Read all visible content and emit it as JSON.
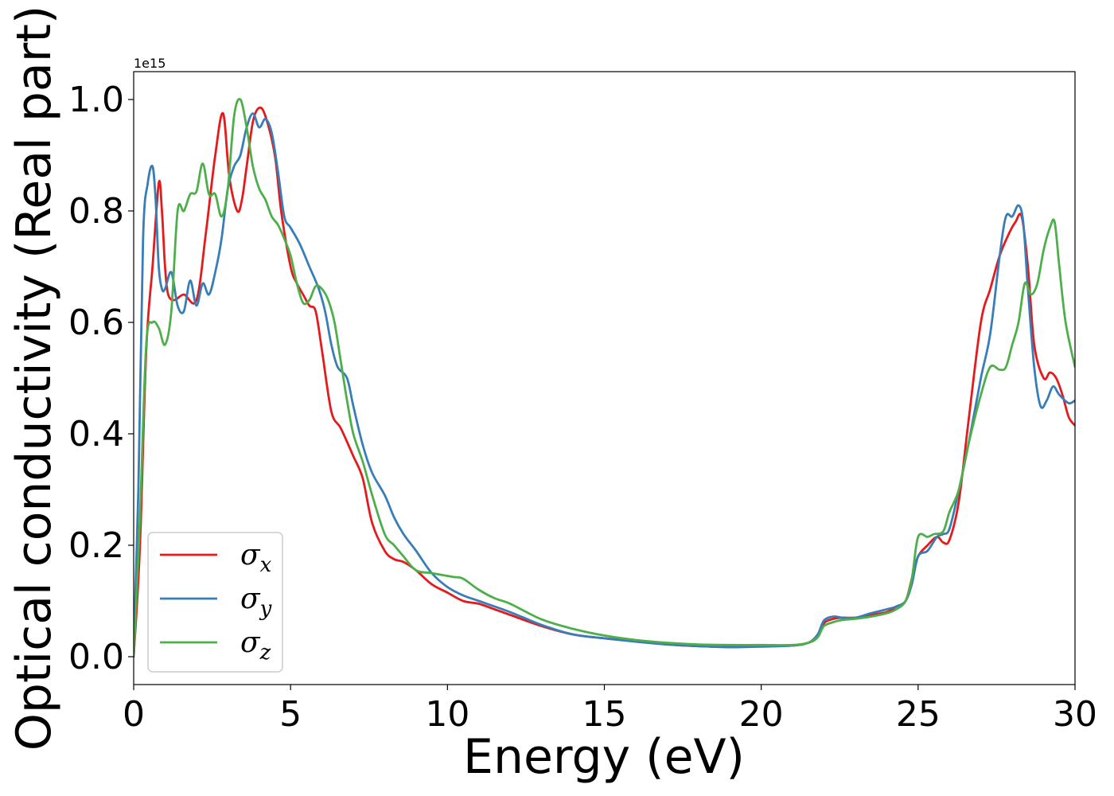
{
  "chart_data": {
    "type": "line",
    "xlabel": "Energy (eV)",
    "ylabel": "Optical conductivity (Real part)",
    "y_offset_label": "1e15",
    "xlim": [
      0,
      30
    ],
    "ylim": [
      -0.05,
      1.05
    ],
    "x_ticks": [
      0,
      5,
      10,
      15,
      20,
      25,
      30
    ],
    "x_tick_labels": [
      "0",
      "5",
      "10",
      "15",
      "20",
      "25",
      "30"
    ],
    "y_ticks": [
      0.0,
      0.2,
      0.4,
      0.6,
      0.8,
      1.0
    ],
    "y_tick_labels": [
      "0.0",
      "0.2",
      "0.4",
      "0.6",
      "0.8",
      "1.0"
    ],
    "grid": false,
    "legend_position": "lower-left",
    "series": [
      {
        "name": "σx",
        "symbol": "σ",
        "subscript": "x",
        "color": "#e41a1c",
        "x": [
          0,
          0.2,
          0.4,
          0.6,
          0.8,
          0.9,
          1.0,
          1.1,
          1.3,
          1.6,
          2.0,
          2.3,
          2.6,
          2.85,
          3.05,
          3.3,
          3.45,
          3.6,
          3.8,
          4.0,
          4.2,
          4.5,
          4.7,
          5.0,
          5.2,
          5.4,
          5.6,
          5.8,
          6.0,
          6.3,
          6.6,
          7.0,
          7.3,
          7.6,
          8.0,
          8.3,
          8.6,
          9.0,
          9.5,
          10,
          10.5,
          11,
          11.5,
          12,
          13,
          14,
          15,
          16,
          17,
          18,
          19,
          20,
          21,
          21.5,
          21.8,
          22,
          22.3,
          22.6,
          23,
          23.5,
          24,
          24.3,
          24.6,
          24.8,
          25,
          25.3,
          25.6,
          25.8,
          26,
          26.3,
          26.6,
          27,
          27.3,
          27.6,
          27.9,
          28.1,
          28.3,
          28.5,
          28.7,
          29,
          29.2,
          29.4,
          29.6,
          29.8,
          30
        ],
        "values": [
          0.0,
          0.2,
          0.55,
          0.7,
          0.85,
          0.8,
          0.7,
          0.65,
          0.64,
          0.65,
          0.64,
          0.76,
          0.9,
          0.975,
          0.86,
          0.8,
          0.82,
          0.88,
          0.96,
          0.985,
          0.97,
          0.9,
          0.8,
          0.7,
          0.67,
          0.65,
          0.63,
          0.62,
          0.55,
          0.44,
          0.41,
          0.36,
          0.32,
          0.24,
          0.19,
          0.175,
          0.17,
          0.155,
          0.13,
          0.115,
          0.1,
          0.095,
          0.085,
          0.075,
          0.055,
          0.04,
          0.033,
          0.028,
          0.022,
          0.019,
          0.018,
          0.019,
          0.02,
          0.025,
          0.035,
          0.06,
          0.068,
          0.07,
          0.07,
          0.075,
          0.08,
          0.09,
          0.1,
          0.14,
          0.18,
          0.2,
          0.215,
          0.205,
          0.21,
          0.28,
          0.42,
          0.6,
          0.66,
          0.72,
          0.76,
          0.78,
          0.79,
          0.7,
          0.56,
          0.5,
          0.51,
          0.5,
          0.47,
          0.43,
          0.415
        ]
      },
      {
        "name": "σy",
        "symbol": "σ",
        "subscript": "y",
        "color": "#377eb8",
        "x": [
          0,
          0.15,
          0.3,
          0.45,
          0.6,
          0.7,
          0.8,
          0.9,
          1.0,
          1.2,
          1.4,
          1.6,
          1.8,
          2.0,
          2.2,
          2.4,
          2.6,
          2.8,
          3.0,
          3.2,
          3.4,
          3.6,
          3.8,
          4.0,
          4.2,
          4.4,
          4.6,
          4.8,
          5.0,
          5.3,
          5.6,
          5.9,
          6.1,
          6.3,
          6.5,
          6.8,
          7.0,
          7.3,
          7.6,
          8.0,
          8.3,
          8.6,
          9.0,
          9.5,
          10,
          10.5,
          11,
          12,
          13,
          14,
          15,
          16,
          17,
          18,
          19,
          20,
          21,
          21.5,
          21.8,
          22,
          22.3,
          22.6,
          23,
          23.5,
          24,
          24.3,
          24.6,
          24.8,
          25,
          25.3,
          25.6,
          25.8,
          26,
          26.3,
          26.6,
          27,
          27.3,
          27.6,
          27.8,
          28,
          28.2,
          28.35,
          28.5,
          28.7,
          28.9,
          29.1,
          29.3,
          29.5,
          29.8,
          30
        ],
        "values": [
          0.0,
          0.3,
          0.75,
          0.85,
          0.88,
          0.82,
          0.7,
          0.66,
          0.66,
          0.69,
          0.63,
          0.62,
          0.675,
          0.63,
          0.67,
          0.65,
          0.69,
          0.75,
          0.84,
          0.88,
          0.9,
          0.95,
          0.975,
          0.95,
          0.965,
          0.94,
          0.87,
          0.79,
          0.77,
          0.74,
          0.7,
          0.66,
          0.62,
          0.56,
          0.52,
          0.5,
          0.45,
          0.38,
          0.33,
          0.29,
          0.25,
          0.22,
          0.19,
          0.15,
          0.125,
          0.11,
          0.1,
          0.08,
          0.057,
          0.04,
          0.033,
          0.027,
          0.022,
          0.019,
          0.017,
          0.018,
          0.02,
          0.025,
          0.04,
          0.065,
          0.072,
          0.07,
          0.07,
          0.078,
          0.085,
          0.09,
          0.1,
          0.13,
          0.18,
          0.19,
          0.215,
          0.22,
          0.23,
          0.3,
          0.38,
          0.5,
          0.58,
          0.72,
          0.79,
          0.79,
          0.81,
          0.78,
          0.66,
          0.52,
          0.45,
          0.46,
          0.485,
          0.47,
          0.455,
          0.46
        ]
      },
      {
        "name": "σz",
        "symbol": "σ",
        "subscript": "z",
        "color": "#4daf4a",
        "x": [
          0,
          0.2,
          0.4,
          0.6,
          0.8,
          1.0,
          1.2,
          1.4,
          1.6,
          1.8,
          2.0,
          2.2,
          2.4,
          2.6,
          2.8,
          3.0,
          3.2,
          3.4,
          3.6,
          3.8,
          4.0,
          4.2,
          4.4,
          4.6,
          4.8,
          5.0,
          5.2,
          5.4,
          5.6,
          5.8,
          6.0,
          6.2,
          6.4,
          6.6,
          6.8,
          7.0,
          7.3,
          7.6,
          8.0,
          8.3,
          8.6,
          9.0,
          9.5,
          10,
          10.2,
          10.5,
          11,
          11.5,
          12,
          13,
          14,
          15,
          16,
          17,
          18,
          19,
          20,
          21,
          21.5,
          21.8,
          22,
          22.3,
          22.6,
          23,
          23.5,
          24,
          24.3,
          24.6,
          24.8,
          25,
          25.3,
          25.5,
          25.8,
          26,
          26.3,
          26.6,
          27,
          27.3,
          27.6,
          27.8,
          28,
          28.2,
          28.4,
          28.6,
          28.8,
          29,
          29.2,
          29.35,
          29.5,
          29.7,
          30
        ],
        "values": [
          0.0,
          0.25,
          0.56,
          0.6,
          0.59,
          0.56,
          0.62,
          0.8,
          0.8,
          0.83,
          0.835,
          0.885,
          0.83,
          0.83,
          0.79,
          0.84,
          0.97,
          1.0,
          0.95,
          0.88,
          0.84,
          0.82,
          0.79,
          0.775,
          0.75,
          0.72,
          0.67,
          0.635,
          0.64,
          0.665,
          0.66,
          0.64,
          0.6,
          0.53,
          0.46,
          0.4,
          0.35,
          0.29,
          0.22,
          0.2,
          0.18,
          0.155,
          0.15,
          0.145,
          0.143,
          0.14,
          0.12,
          0.105,
          0.095,
          0.067,
          0.05,
          0.038,
          0.03,
          0.025,
          0.022,
          0.021,
          0.021,
          0.021,
          0.025,
          0.035,
          0.055,
          0.062,
          0.066,
          0.068,
          0.072,
          0.078,
          0.085,
          0.1,
          0.14,
          0.215,
          0.215,
          0.22,
          0.225,
          0.26,
          0.3,
          0.38,
          0.47,
          0.52,
          0.515,
          0.52,
          0.56,
          0.6,
          0.67,
          0.65,
          0.67,
          0.73,
          0.77,
          0.78,
          0.7,
          0.6,
          0.52
        ]
      }
    ]
  }
}
